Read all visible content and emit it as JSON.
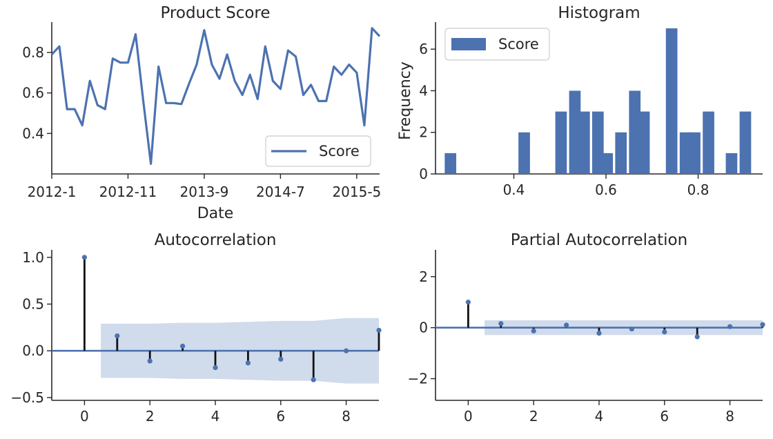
{
  "colors": {
    "series": "#4c72b0",
    "axis": "#262626",
    "band": "#d0dbec",
    "stem": "#111111"
  },
  "chart_data": [
    {
      "id": "score",
      "type": "line",
      "title": "Product Score",
      "xlabel": "Date",
      "ylabel": "",
      "ylim": [
        0.2,
        0.95
      ],
      "yticks": [
        0.4,
        0.6,
        0.8
      ],
      "xtick_labels": [
        "2012-1",
        "2012-11",
        "2013-9",
        "2014-7",
        "2015-5"
      ],
      "xtick_index": [
        0,
        10,
        20,
        30,
        40
      ],
      "legend": {
        "label": "Score",
        "position": "lower-right"
      },
      "series": [
        {
          "name": "Score",
          "x": [
            "2012-1",
            "2012-2",
            "2012-3",
            "2012-4",
            "2012-5",
            "2012-6",
            "2012-7",
            "2012-8",
            "2012-9",
            "2012-10",
            "2012-11",
            "2012-12",
            "2013-1",
            "2013-2",
            "2013-3",
            "2013-4",
            "2013-5",
            "2013-6",
            "2013-7",
            "2013-8",
            "2013-9",
            "2013-10",
            "2013-11",
            "2013-12",
            "2014-1",
            "2014-2",
            "2014-3",
            "2014-4",
            "2014-5",
            "2014-6",
            "2014-7",
            "2014-8",
            "2014-9",
            "2014-10",
            "2014-11",
            "2014-12",
            "2015-1",
            "2015-2",
            "2015-3",
            "2015-4",
            "2015-5",
            "2015-6",
            "2015-7",
            "2015-8"
          ],
          "values": [
            0.79,
            0.83,
            0.52,
            0.52,
            0.44,
            0.66,
            0.54,
            0.52,
            0.77,
            0.75,
            0.75,
            0.89,
            0.56,
            0.25,
            0.73,
            0.55,
            0.55,
            0.545,
            0.645,
            0.74,
            0.91,
            0.74,
            0.67,
            0.79,
            0.66,
            0.59,
            0.69,
            0.57,
            0.83,
            0.66,
            0.62,
            0.81,
            0.78,
            0.59,
            0.64,
            0.56,
            0.56,
            0.73,
            0.69,
            0.74,
            0.7,
            0.44,
            0.92,
            0.88
          ]
        }
      ]
    },
    {
      "id": "hist",
      "type": "bar",
      "title": "Histogram",
      "xlabel": "",
      "ylabel": "Frequency",
      "xlim": [
        0.23,
        0.94
      ],
      "ylim": [
        0,
        7.3
      ],
      "xticks": [
        0.4,
        0.6,
        0.8
      ],
      "yticks": [
        0,
        2,
        4,
        6
      ],
      "bin_width": 0.0265,
      "legend": {
        "label": "Score",
        "position": "upper-left"
      },
      "series": [
        {
          "name": "Score",
          "bin_start": [
            0.25,
            0.41,
            0.49,
            0.52,
            0.54,
            0.57,
            0.59,
            0.62,
            0.65,
            0.67,
            0.73,
            0.76,
            0.78,
            0.81,
            0.86,
            0.89
          ],
          "values": [
            1,
            2,
            3,
            4,
            3,
            3,
            1,
            2,
            4,
            3,
            7,
            2,
            2,
            3,
            1,
            3
          ]
        }
      ]
    },
    {
      "id": "acf",
      "type": "scatter",
      "title": "Autocorrelation",
      "xlabel": "",
      "ylabel": "",
      "xlim": [
        -1,
        9
      ],
      "ylim": [
        -0.53,
        1.08
      ],
      "xticks": [
        0,
        2,
        4,
        6,
        8
      ],
      "yticks": [
        -0.5,
        0.0,
        0.5,
        1.0
      ],
      "ytick_labels": [
        "−0.5",
        "0.0",
        "0.5",
        "1.0"
      ],
      "series": [
        {
          "name": "",
          "x": [
            0,
            1,
            2,
            3,
            4,
            5,
            6,
            7,
            8,
            9
          ],
          "values": [
            1.0,
            0.16,
            -0.11,
            0.05,
            -0.18,
            -0.13,
            -0.09,
            -0.31,
            0.0,
            0.22
          ]
        }
      ],
      "confidence_band": {
        "x": [
          0.5,
          1,
          2,
          3,
          4,
          5,
          6,
          7,
          8,
          9
        ],
        "upper": [
          0.29,
          0.29,
          0.29,
          0.3,
          0.3,
          0.31,
          0.32,
          0.32,
          0.35,
          0.35
        ]
      }
    },
    {
      "id": "pacf",
      "type": "scatter",
      "title": "Partial Autocorrelation",
      "xlabel": "",
      "ylabel": "",
      "xlim": [
        -1,
        9
      ],
      "ylim": [
        -2.85,
        3.05
      ],
      "xticks": [
        0,
        2,
        4,
        6,
        8
      ],
      "yticks": [
        -2,
        0,
        2
      ],
      "ytick_labels": [
        "−2",
        "0",
        "2"
      ],
      "series": [
        {
          "name": "",
          "x": [
            0,
            1,
            2,
            3,
            4,
            5,
            6,
            7,
            8,
            9
          ],
          "values": [
            1.0,
            0.16,
            -0.13,
            0.1,
            -0.22,
            -0.05,
            -0.17,
            -0.36,
            0.04,
            0.12
          ]
        }
      ],
      "confidence_band": {
        "x": [
          0.5,
          9
        ],
        "upper": [
          0.29,
          0.29
        ]
      }
    }
  ]
}
